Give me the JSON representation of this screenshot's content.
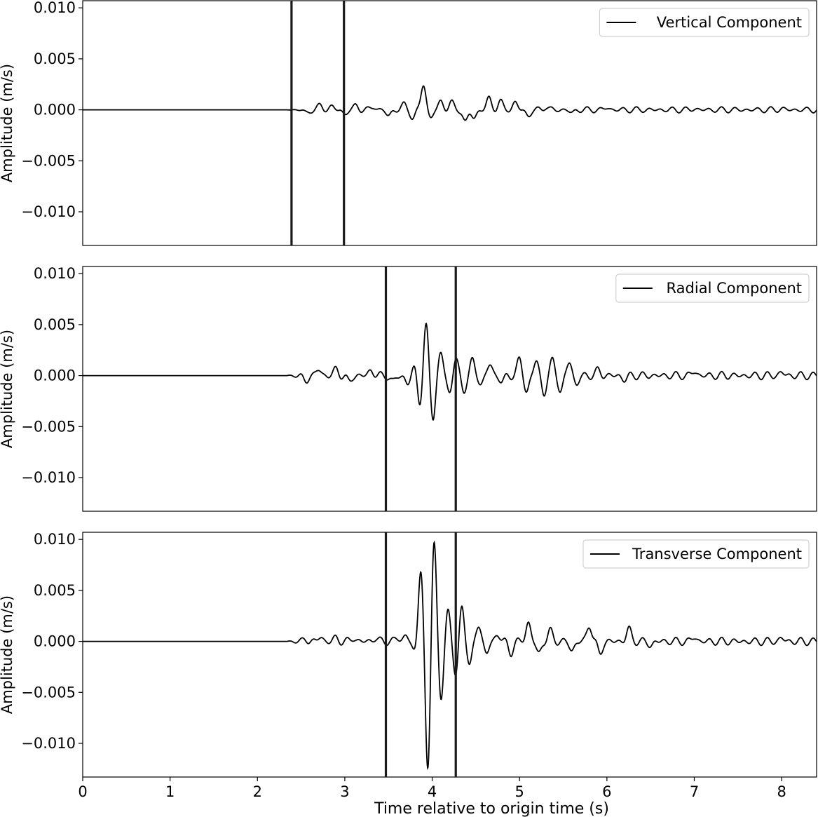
{
  "chart_data": [
    {
      "type": "line",
      "panel": "top",
      "series": [
        {
          "name": "Vertical Component"
        }
      ],
      "ylabel": "Amplitude (m/s)",
      "xlabel": "",
      "xlim": [
        0,
        8.4
      ],
      "ylim": [
        -0.0133,
        0.0107
      ],
      "yticks": [
        0.01,
        0.005,
        0.0,
        -0.005,
        -0.01
      ],
      "ytick_labels": [
        "0.010",
        "0.005",
        "0.000",
        "−0.005",
        "−0.010"
      ],
      "vlines": [
        2.39,
        2.99
      ],
      "legend_position": "top-right",
      "signal": {
        "onset": 2.33,
        "peaks": [
          {
            "t": 2.56,
            "a": -0.0003
          },
          {
            "t": 2.72,
            "a": 0.0004
          },
          {
            "t": 2.85,
            "a": 0.0003
          },
          {
            "t": 3.0,
            "a": -0.0004
          },
          {
            "t": 3.13,
            "a": 0.0004
          },
          {
            "t": 3.33,
            "a": 0.0003
          },
          {
            "t": 3.5,
            "a": -0.0006
          },
          {
            "t": 3.68,
            "a": 0.0005
          },
          {
            "t": 3.78,
            "a": -0.0008
          },
          {
            "t": 3.9,
            "a": 0.0025
          },
          {
            "t": 3.98,
            "a": -0.0008
          },
          {
            "t": 4.1,
            "a": 0.0008
          },
          {
            "t": 4.22,
            "a": 0.0007
          },
          {
            "t": 4.38,
            "a": -0.0012
          },
          {
            "t": 4.48,
            "a": -0.0008
          },
          {
            "t": 4.65,
            "a": 0.0011
          },
          {
            "t": 4.78,
            "a": 0.0008
          },
          {
            "t": 4.95,
            "a": 0.0007
          },
          {
            "t": 5.1,
            "a": -0.0006
          },
          {
            "t": 5.3,
            "a": 0.0003
          },
          {
            "t": 5.6,
            "a": -0.0003
          },
          {
            "t": 6.0,
            "a": 0.0002
          },
          {
            "t": 7.0,
            "a": 0.0001
          },
          {
            "t": 8.0,
            "a": 0.0001
          }
        ],
        "residual": 0.0003,
        "period": 0.14
      }
    },
    {
      "type": "line",
      "panel": "middle",
      "series": [
        {
          "name": "Radial Component"
        }
      ],
      "ylabel": "Amplitude (m/s)",
      "xlabel": "",
      "xlim": [
        0,
        8.4
      ],
      "ylim": [
        -0.0133,
        0.0107
      ],
      "yticks": [
        0.01,
        0.005,
        0.0,
        -0.005,
        -0.01
      ],
      "ytick_labels": [
        "0.010",
        "0.005",
        "0.000",
        "−0.005",
        "−0.010"
      ],
      "vlines": [
        3.47,
        4.27
      ],
      "legend_position": "top-right",
      "signal": {
        "onset": 2.33,
        "peaks": [
          {
            "t": 2.55,
            "a": -0.0005
          },
          {
            "t": 2.7,
            "a": 0.0006
          },
          {
            "t": 2.9,
            "a": 0.0006
          },
          {
            "t": 3.05,
            "a": -0.0006
          },
          {
            "t": 3.3,
            "a": 0.0005
          },
          {
            "t": 3.55,
            "a": -0.0006
          },
          {
            "t": 3.72,
            "a": -0.0008
          },
          {
            "t": 3.8,
            "a": 0.0009
          },
          {
            "t": 3.86,
            "a": -0.0028
          },
          {
            "t": 3.93,
            "a": 0.0049
          },
          {
            "t": 4.01,
            "a": -0.0041
          },
          {
            "t": 4.1,
            "a": 0.0022
          },
          {
            "t": 4.2,
            "a": -0.0018
          },
          {
            "t": 4.27,
            "a": 0.0018
          },
          {
            "t": 4.36,
            "a": -0.0015
          },
          {
            "t": 4.46,
            "a": 0.0014
          },
          {
            "t": 4.56,
            "a": -0.0008
          },
          {
            "t": 4.66,
            "a": 0.0011
          },
          {
            "t": 4.8,
            "a": -0.0006
          },
          {
            "t": 5.0,
            "a": 0.0016
          },
          {
            "t": 5.08,
            "a": -0.0016
          },
          {
            "t": 5.19,
            "a": 0.0014
          },
          {
            "t": 5.28,
            "a": -0.0017
          },
          {
            "t": 5.38,
            "a": 0.0015
          },
          {
            "t": 5.47,
            "a": -0.0016
          },
          {
            "t": 5.57,
            "a": 0.0014
          },
          {
            "t": 5.65,
            "a": -0.0009
          },
          {
            "t": 5.9,
            "a": 0.0005
          },
          {
            "t": 6.2,
            "a": -0.0004
          },
          {
            "t": 7.0,
            "a": 0.0004
          },
          {
            "t": 8.0,
            "a": 0.0003
          }
        ],
        "residual": 0.0004,
        "period": 0.13
      }
    },
    {
      "type": "line",
      "panel": "bottom",
      "series": [
        {
          "name": "Transverse Component"
        }
      ],
      "ylabel": "Amplitude (m/s)",
      "xlabel": "Time relative to origin time (s)",
      "xlim": [
        0,
        8.4
      ],
      "ylim": [
        -0.0133,
        0.0107
      ],
      "xticks": [
        0,
        1,
        2,
        3,
        4,
        5,
        6,
        7,
        8
      ],
      "xtick_labels": [
        "0",
        "1",
        "2",
        "3",
        "4",
        "5",
        "6",
        "7",
        "8"
      ],
      "yticks": [
        0.01,
        0.005,
        0.0,
        -0.005,
        -0.01
      ],
      "ytick_labels": [
        "0.010",
        "0.005",
        "0.000",
        "−0.005",
        "−0.010"
      ],
      "vlines": [
        3.47,
        4.27
      ],
      "legend_position": "top-right",
      "signal": {
        "onset": 2.33,
        "peaks": [
          {
            "t": 2.55,
            "a": 0.0002
          },
          {
            "t": 2.72,
            "a": 0.0004
          },
          {
            "t": 2.9,
            "a": 0.0003
          },
          {
            "t": 3.1,
            "a": 0.0003
          },
          {
            "t": 3.35,
            "a": 0.0003
          },
          {
            "t": 3.6,
            "a": 0.0003
          },
          {
            "t": 3.7,
            "a": 0.0006
          },
          {
            "t": 3.8,
            "a": -0.0012
          },
          {
            "t": 3.87,
            "a": 0.0074
          },
          {
            "t": 3.95,
            "a": -0.0133
          },
          {
            "t": 4.02,
            "a": 0.0106
          },
          {
            "t": 4.1,
            "a": -0.006
          },
          {
            "t": 4.18,
            "a": 0.0032
          },
          {
            "t": 4.27,
            "a": -0.0034
          },
          {
            "t": 4.34,
            "a": 0.0035
          },
          {
            "t": 4.43,
            "a": -0.0024
          },
          {
            "t": 4.53,
            "a": 0.0017
          },
          {
            "t": 4.62,
            "a": -0.0012
          },
          {
            "t": 4.75,
            "a": 0.0007
          },
          {
            "t": 4.9,
            "a": -0.0011
          },
          {
            "t": 5.1,
            "a": 0.0018
          },
          {
            "t": 5.22,
            "a": -0.0012
          },
          {
            "t": 5.35,
            "a": 0.001
          },
          {
            "t": 5.6,
            "a": -0.0009
          },
          {
            "t": 5.8,
            "a": 0.0016
          },
          {
            "t": 5.92,
            "a": -0.0012
          },
          {
            "t": 6.25,
            "a": 0.0012
          },
          {
            "t": 6.5,
            "a": -0.0004
          },
          {
            "t": 7.0,
            "a": 0.0004
          },
          {
            "t": 8.0,
            "a": 0.0003
          }
        ],
        "residual": 0.0004,
        "period": 0.13
      }
    }
  ]
}
